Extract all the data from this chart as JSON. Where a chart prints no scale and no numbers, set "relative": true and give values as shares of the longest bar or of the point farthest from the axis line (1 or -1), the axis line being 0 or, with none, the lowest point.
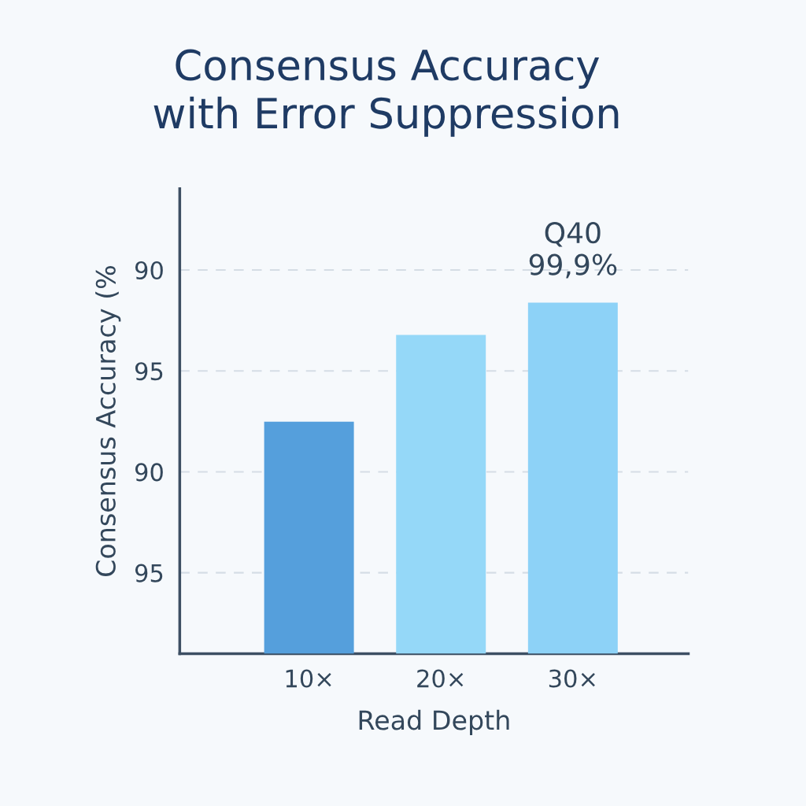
{
  "chart_data": {
    "type": "bar",
    "title": "Consensus Accuracy\nwith Error Suppression",
    "xlabel": "Read Depth",
    "ylabel": "Consensus Accuracy (%",
    "categories": [
      "10×",
      "20×",
      "30×"
    ],
    "values": [
      0.661,
      0.908,
      1
    ],
    "colors": [
      "#559fdc",
      "#95d8f8",
      "#8dd2f7"
    ],
    "relative": true,
    "grid": "y",
    "annotations": [
      "95",
      "90",
      "95",
      "90",
      {
        "text": "Q40\n99,9%",
        "x": "30×",
        "y": 1
      }
    ]
  }
}
